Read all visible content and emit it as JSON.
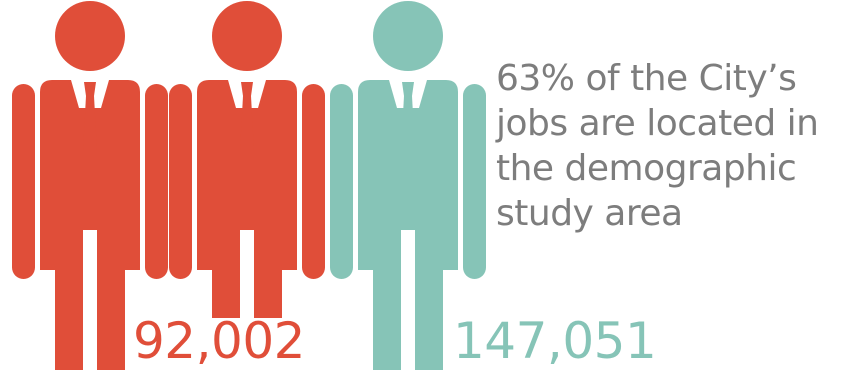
{
  "colors": {
    "accent_red": "#e04e39",
    "accent_teal": "#86c4b7",
    "text_gray": "#7d7d7d",
    "background": "#ffffff"
  },
  "icons": [
    "person-in-suit-icon",
    "person-in-suit-icon",
    "person-in-suit-icon"
  ],
  "stats": {
    "left_value": "92,002",
    "right_value": "147,051"
  },
  "caption": {
    "text": "63% of the City’s jobs are located in the demographic study area"
  }
}
